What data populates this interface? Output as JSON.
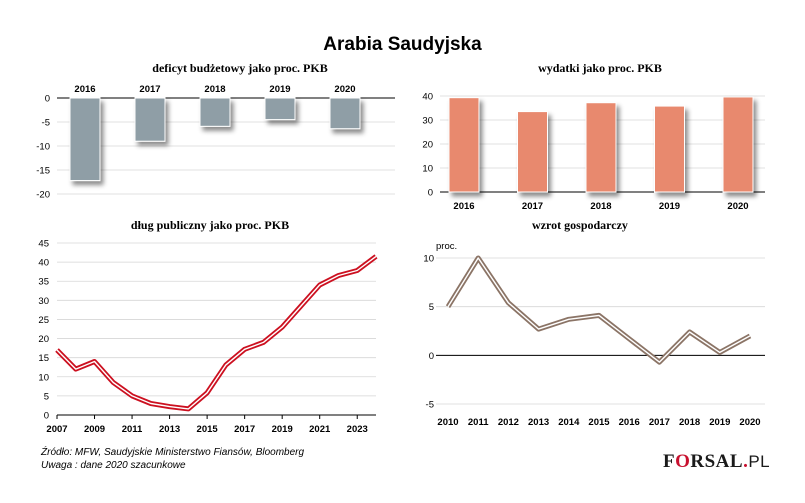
{
  "page": {
    "title": "Arabia Saudyjska",
    "source_line1": "Źródło: MFW, Saudyjskie Ministerstwo Fiansów, Bloomberg",
    "source_line2": "Uwaga : dane 2020 szacunkowe",
    "logo": {
      "prefix": "F",
      "mark": "O",
      "rest": "RSAL",
      "dot": ".",
      "suffix": "PL"
    }
  },
  "chart_data": [
    {
      "id": "deficit",
      "type": "bar",
      "title": "deficyt budżetowy jako proc. PKB",
      "categories": [
        "2016",
        "2017",
        "2018",
        "2019",
        "2020"
      ],
      "values": [
        -17.2,
        -9.0,
        -5.9,
        -4.5,
        -6.4
      ],
      "ylim": [
        -20,
        0
      ],
      "yticks": [
        "0",
        "-5",
        "-10",
        "-15",
        "-20"
      ],
      "color": "#8f9ea6",
      "grid": true
    },
    {
      "id": "spending",
      "type": "bar",
      "title": "wydatki jako proc. PKB",
      "categories": [
        "2016",
        "2017",
        "2018",
        "2019",
        "2020"
      ],
      "values": [
        39.3,
        33.5,
        37.2,
        35.8,
        39.6
      ],
      "ylim": [
        0,
        40
      ],
      "yticks": [
        "40",
        "30",
        "20",
        "10",
        "0"
      ],
      "color": "#e8896e",
      "grid": true
    },
    {
      "id": "debt",
      "type": "line",
      "title": "dług publiczny jako proc. PKB",
      "x": [
        2007,
        2008,
        2009,
        2010,
        2011,
        2012,
        2013,
        2014,
        2015,
        2016,
        2017,
        2018,
        2019,
        2020,
        2021,
        2022,
        2023,
        2024
      ],
      "values": [
        17.0,
        12.0,
        14.0,
        8.5,
        5.0,
        3.0,
        2.2,
        1.6,
        5.8,
        13.1,
        17.2,
        19.0,
        23.0,
        28.5,
        34.0,
        36.5,
        37.8,
        41.5
      ],
      "xticks": [
        "2007",
        "2009",
        "2011",
        "2013",
        "2015",
        "2017",
        "2019",
        "2021",
        "2023"
      ],
      "ylim": [
        0,
        45
      ],
      "yticks": [
        "45",
        "40",
        "35",
        "30",
        "25",
        "20",
        "15",
        "10",
        "5",
        "0"
      ],
      "color": "#cc1020",
      "grid": true
    },
    {
      "id": "growth",
      "type": "line",
      "title": "wzrot gospodarczy",
      "unit": "proc.",
      "categories": [
        "2010",
        "2011",
        "2012",
        "2013",
        "2014",
        "2015",
        "2016",
        "2017",
        "2018",
        "2019",
        "2020"
      ],
      "values": [
        5.0,
        10.0,
        5.4,
        2.7,
        3.7,
        4.1,
        1.7,
        -0.7,
        2.4,
        0.3,
        2.0
      ],
      "ylim": [
        -5,
        10
      ],
      "yticks": [
        "10",
        "5",
        "0",
        "-5"
      ],
      "color": "#8b7466",
      "grid": true
    }
  ]
}
